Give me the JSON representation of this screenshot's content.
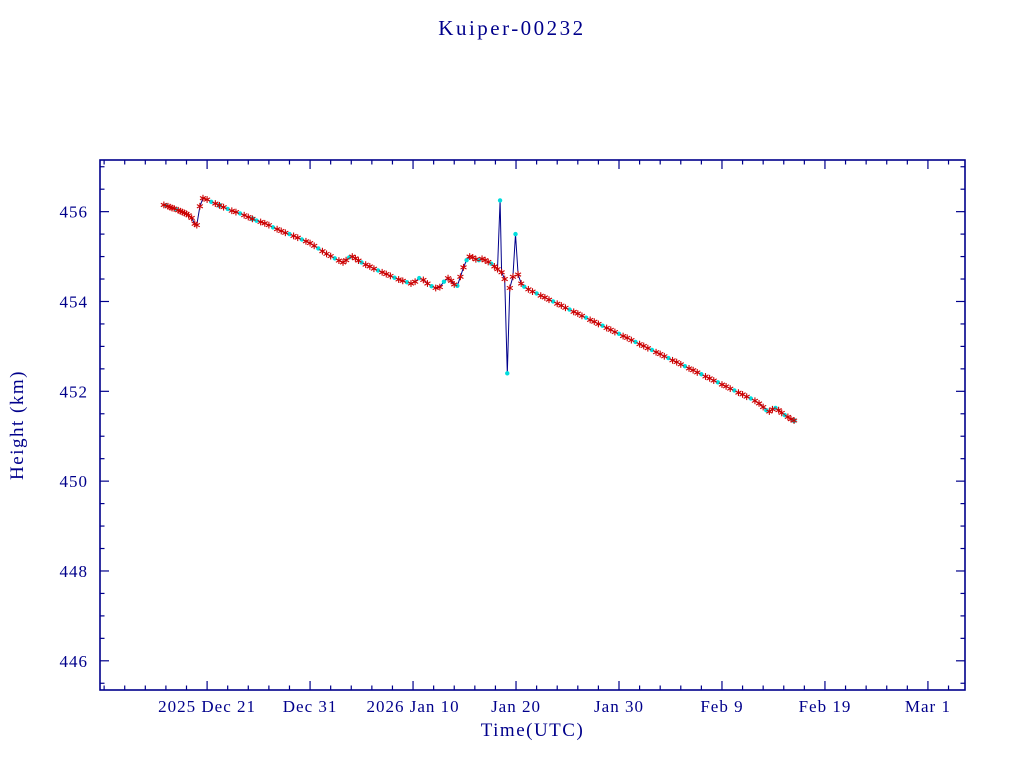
{
  "chart_data": {
    "type": "line",
    "title": "Kuiper-00232",
    "xlabel": "Time(UTC)",
    "ylabel": "Height (km)",
    "x_unit": "days since 2025-12-21 (UTC)",
    "xlim": [
      -10.4,
      73.6
    ],
    "ylim": [
      445.35,
      457.15
    ],
    "y_ticks": [
      446,
      448,
      450,
      452,
      454,
      456
    ],
    "y_minor_step": 0.5,
    "x_minor_step": 2,
    "x_ticks": [
      {
        "d": 0,
        "label": "2025 Dec 21"
      },
      {
        "d": 10,
        "label": "Dec 31"
      },
      {
        "d": 20,
        "label": "2026 Jan 10"
      },
      {
        "d": 30,
        "label": "Jan 20"
      },
      {
        "d": 40,
        "label": "Jan 30"
      },
      {
        "d": 50,
        "label": "Feb 9"
      },
      {
        "d": 60,
        "label": "Feb 19"
      },
      {
        "d": 70,
        "label": "Mar 1"
      }
    ],
    "legend": null,
    "colors": {
      "axis": "#00008b",
      "line": "#00008b",
      "red_marker": "#cc0000",
      "cyan_marker": "#00dddd"
    },
    "marker_key": "r = red asterisk, c = cyan dot, b = both",
    "points": [
      [
        -4.2,
        456.15,
        "r"
      ],
      [
        -4.0,
        456.14,
        "c"
      ],
      [
        -3.8,
        456.12,
        "r"
      ],
      [
        -3.6,
        456.1,
        "r"
      ],
      [
        -3.4,
        456.08,
        "r"
      ],
      [
        -3.2,
        456.07,
        "r"
      ],
      [
        -3.0,
        456.05,
        "c"
      ],
      [
        -2.8,
        456.03,
        "r"
      ],
      [
        -2.6,
        456.01,
        "r"
      ],
      [
        -2.4,
        455.99,
        "r"
      ],
      [
        -2.2,
        455.97,
        "r"
      ],
      [
        -2.0,
        455.95,
        "r"
      ],
      [
        -1.8,
        455.92,
        "r"
      ],
      [
        -1.5,
        455.86,
        "r"
      ],
      [
        -1.2,
        455.73,
        "r"
      ],
      [
        -1.0,
        455.7,
        "r"
      ],
      [
        -0.7,
        456.12,
        "r"
      ],
      [
        -0.4,
        456.3,
        "r"
      ],
      [
        0.0,
        456.27,
        "r"
      ],
      [
        0.4,
        456.22,
        "c"
      ],
      [
        0.8,
        456.18,
        "r"
      ],
      [
        1.2,
        456.14,
        "b"
      ],
      [
        1.6,
        456.1,
        "r"
      ],
      [
        2.0,
        456.06,
        "c"
      ],
      [
        2.4,
        456.02,
        "r"
      ],
      [
        2.8,
        455.99,
        "r"
      ],
      [
        3.2,
        455.96,
        "c"
      ],
      [
        3.6,
        455.92,
        "r"
      ],
      [
        4.0,
        455.88,
        "r"
      ],
      [
        4.4,
        455.84,
        "b"
      ],
      [
        4.8,
        455.8,
        "c"
      ],
      [
        5.2,
        455.77,
        "r"
      ],
      [
        5.6,
        455.74,
        "r"
      ],
      [
        6.0,
        455.7,
        "r"
      ],
      [
        6.4,
        455.65,
        "c"
      ],
      [
        6.8,
        455.61,
        "r"
      ],
      [
        7.2,
        455.57,
        "r"
      ],
      [
        7.6,
        455.53,
        "r"
      ],
      [
        8.0,
        455.5,
        "c"
      ],
      [
        8.4,
        455.46,
        "r"
      ],
      [
        8.8,
        455.42,
        "r"
      ],
      [
        9.2,
        455.38,
        "c"
      ],
      [
        9.6,
        455.34,
        "r"
      ],
      [
        10.0,
        455.3,
        "r"
      ],
      [
        10.4,
        455.24,
        "r"
      ],
      [
        10.8,
        455.18,
        "c"
      ],
      [
        11.2,
        455.12,
        "r"
      ],
      [
        11.6,
        455.06,
        "r"
      ],
      [
        12.0,
        455.01,
        "r"
      ],
      [
        12.4,
        454.96,
        "c"
      ],
      [
        12.8,
        454.91,
        "r"
      ],
      [
        13.2,
        454.87,
        "r"
      ],
      [
        13.5,
        454.92,
        "r"
      ],
      [
        13.8,
        454.98,
        "c"
      ],
      [
        14.1,
        455.0,
        "r"
      ],
      [
        14.4,
        454.96,
        "r"
      ],
      [
        14.7,
        454.91,
        "r"
      ],
      [
        15.0,
        454.87,
        "c"
      ],
      [
        15.4,
        454.82,
        "r"
      ],
      [
        15.8,
        454.78,
        "r"
      ],
      [
        16.2,
        454.73,
        "r"
      ],
      [
        16.6,
        454.69,
        "c"
      ],
      [
        17.0,
        454.65,
        "r"
      ],
      [
        17.4,
        454.61,
        "r"
      ],
      [
        17.8,
        454.57,
        "r"
      ],
      [
        18.2,
        454.53,
        "c"
      ],
      [
        18.6,
        454.49,
        "r"
      ],
      [
        19.0,
        454.46,
        "r"
      ],
      [
        19.4,
        454.43,
        "c"
      ],
      [
        19.8,
        454.4,
        "r"
      ],
      [
        20.2,
        454.44,
        "r"
      ],
      [
        20.6,
        454.52,
        "c"
      ],
      [
        21.0,
        454.48,
        "r"
      ],
      [
        21.4,
        454.4,
        "r"
      ],
      [
        21.8,
        454.34,
        "c"
      ],
      [
        22.2,
        454.3,
        "r"
      ],
      [
        22.6,
        454.32,
        "r"
      ],
      [
        23.0,
        454.44,
        "c"
      ],
      [
        23.4,
        454.52,
        "r"
      ],
      [
        23.7,
        454.46,
        "r"
      ],
      [
        24.0,
        454.38,
        "r"
      ],
      [
        24.3,
        454.35,
        "c"
      ],
      [
        24.6,
        454.55,
        "r"
      ],
      [
        24.9,
        454.76,
        "r"
      ],
      [
        25.2,
        454.92,
        "c"
      ],
      [
        25.5,
        455.0,
        "r"
      ],
      [
        25.8,
        454.98,
        "r"
      ],
      [
        26.1,
        454.94,
        "r"
      ],
      [
        26.4,
        454.92,
        "c"
      ],
      [
        26.7,
        454.95,
        "r"
      ],
      [
        27.0,
        454.92,
        "r"
      ],
      [
        27.3,
        454.88,
        "r"
      ],
      [
        27.6,
        454.84,
        "c"
      ],
      [
        27.9,
        454.78,
        "r"
      ],
      [
        28.2,
        454.72,
        "r"
      ],
      [
        28.45,
        456.25,
        "c"
      ],
      [
        28.6,
        454.65,
        "r"
      ],
      [
        28.9,
        454.5,
        "r"
      ],
      [
        29.15,
        452.4,
        "c"
      ],
      [
        29.4,
        454.3,
        "r"
      ],
      [
        29.7,
        454.55,
        "r"
      ],
      [
        29.95,
        455.5,
        "c"
      ],
      [
        30.2,
        454.6,
        "r"
      ],
      [
        30.5,
        454.4,
        "r"
      ],
      [
        30.8,
        454.33,
        "c"
      ],
      [
        31.2,
        454.27,
        "r"
      ],
      [
        31.6,
        454.22,
        "r"
      ],
      [
        32.0,
        454.18,
        "c"
      ],
      [
        32.4,
        454.13,
        "r"
      ],
      [
        32.8,
        454.09,
        "r"
      ],
      [
        33.2,
        454.04,
        "r"
      ],
      [
        33.6,
        454.0,
        "c"
      ],
      [
        34.0,
        453.95,
        "r"
      ],
      [
        34.4,
        453.91,
        "r"
      ],
      [
        34.8,
        453.86,
        "r"
      ],
      [
        35.2,
        453.82,
        "c"
      ],
      [
        35.6,
        453.77,
        "r"
      ],
      [
        36.0,
        453.73,
        "r"
      ],
      [
        36.4,
        453.68,
        "r"
      ],
      [
        36.8,
        453.64,
        "c"
      ],
      [
        37.2,
        453.59,
        "r"
      ],
      [
        37.6,
        453.55,
        "r"
      ],
      [
        38.0,
        453.5,
        "r"
      ],
      [
        38.4,
        453.46,
        "c"
      ],
      [
        38.8,
        453.41,
        "r"
      ],
      [
        39.2,
        453.37,
        "r"
      ],
      [
        39.6,
        453.32,
        "r"
      ],
      [
        40.0,
        453.28,
        "c"
      ],
      [
        40.4,
        453.23,
        "r"
      ],
      [
        40.8,
        453.19,
        "r"
      ],
      [
        41.2,
        453.14,
        "r"
      ],
      [
        41.6,
        453.1,
        "c"
      ],
      [
        42.0,
        453.05,
        "r"
      ],
      [
        42.4,
        453.01,
        "r"
      ],
      [
        42.8,
        452.96,
        "r"
      ],
      [
        43.2,
        452.92,
        "c"
      ],
      [
        43.6,
        452.87,
        "r"
      ],
      [
        44.0,
        452.83,
        "r"
      ],
      [
        44.4,
        452.78,
        "r"
      ],
      [
        44.8,
        452.74,
        "c"
      ],
      [
        45.2,
        452.69,
        "r"
      ],
      [
        45.6,
        452.65,
        "r"
      ],
      [
        46.0,
        452.6,
        "r"
      ],
      [
        46.4,
        452.56,
        "c"
      ],
      [
        46.8,
        452.51,
        "r"
      ],
      [
        47.2,
        452.47,
        "r"
      ],
      [
        47.6,
        452.42,
        "r"
      ],
      [
        48.0,
        452.38,
        "c"
      ],
      [
        48.4,
        452.33,
        "r"
      ],
      [
        48.8,
        452.29,
        "r"
      ],
      [
        49.2,
        452.24,
        "r"
      ],
      [
        49.6,
        452.2,
        "c"
      ],
      [
        50.0,
        452.15,
        "r"
      ],
      [
        50.4,
        452.11,
        "r"
      ],
      [
        50.8,
        452.06,
        "r"
      ],
      [
        51.2,
        452.02,
        "c"
      ],
      [
        51.6,
        451.97,
        "r"
      ],
      [
        52.0,
        451.93,
        "r"
      ],
      [
        52.4,
        451.88,
        "r"
      ],
      [
        52.8,
        451.84,
        "c"
      ],
      [
        53.2,
        451.79,
        "r"
      ],
      [
        53.6,
        451.73,
        "r"
      ],
      [
        54.0,
        451.65,
        "r"
      ],
      [
        54.3,
        451.58,
        "c"
      ],
      [
        54.6,
        451.55,
        "r"
      ],
      [
        54.9,
        451.6,
        "r"
      ],
      [
        55.2,
        451.63,
        "c"
      ],
      [
        55.5,
        451.58,
        "r"
      ],
      [
        55.8,
        451.52,
        "r"
      ],
      [
        56.1,
        451.47,
        "c"
      ],
      [
        56.4,
        451.43,
        "r"
      ],
      [
        56.7,
        451.38,
        "r"
      ],
      [
        57.0,
        451.35,
        "b"
      ]
    ]
  }
}
